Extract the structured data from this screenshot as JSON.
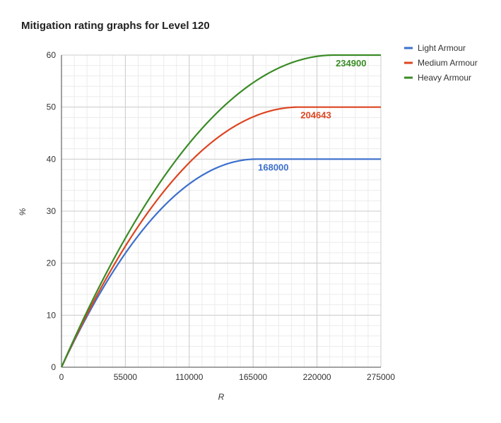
{
  "chart_data": {
    "type": "line",
    "title": "Mitigation rating graphs for Level 120",
    "xlabel": "R",
    "ylabel": "%",
    "xlim": [
      0,
      275000
    ],
    "ylim": [
      0,
      60
    ],
    "x_ticks": [
      0,
      55000,
      110000,
      165000,
      220000,
      275000
    ],
    "y_ticks": [
      0,
      10,
      20,
      30,
      40,
      50,
      60
    ],
    "grid": true,
    "legend": "top-right",
    "series": [
      {
        "name": "Light Armour",
        "color": "#3c6fcc",
        "cap": 40,
        "k": 56000,
        "cap_x": 168000,
        "annotation": "168000",
        "annotation_color": "#3c6fcc"
      },
      {
        "name": "Medium Armour",
        "color": "#dd4420",
        "cap": 50,
        "k": 102321.5,
        "cap_x": 204643,
        "annotation": "204643",
        "annotation_color": "#dd4420"
      },
      {
        "name": "Heavy Armour",
        "color": "#3a8b26",
        "cap": 60,
        "k": 156600,
        "cap_x": 234900,
        "annotation": "234900",
        "annotation_color": "#3a8b26"
      }
    ]
  }
}
